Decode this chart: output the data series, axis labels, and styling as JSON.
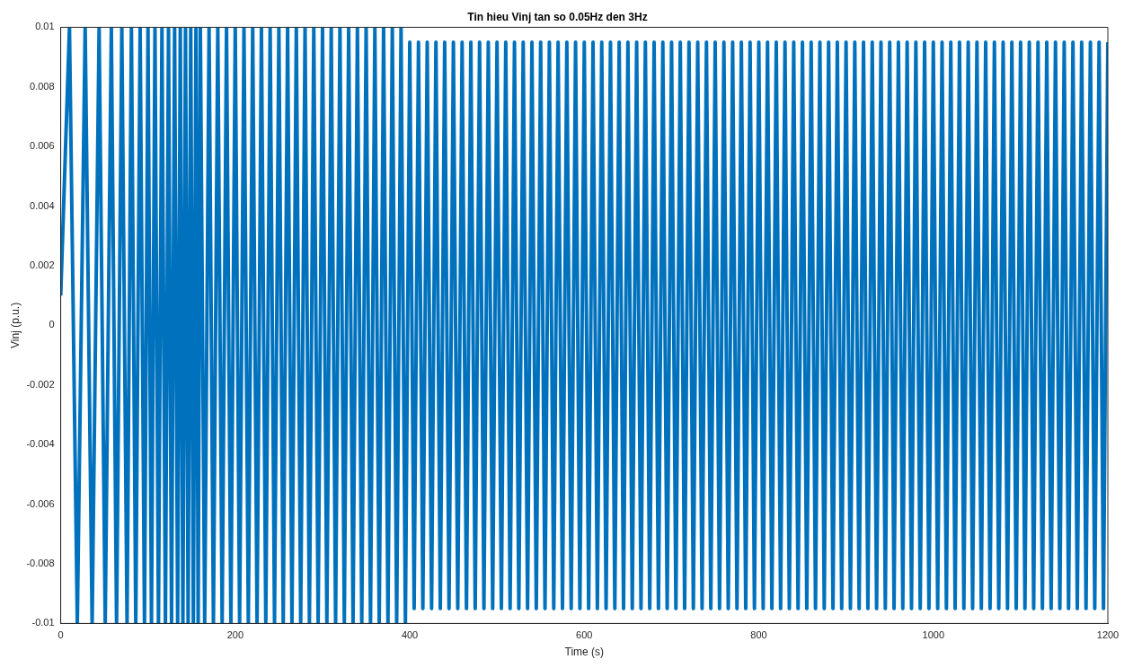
{
  "chart_data": {
    "type": "line",
    "title": "Tin hieu Vinj tan so 0.05Hz den 3Hz",
    "xlabel": "Time (s)",
    "ylabel": "Vinj (p.u.)",
    "xlim": [
      0,
      1200
    ],
    "xticks": [
      0,
      200,
      400,
      600,
      800,
      1000,
      1200
    ],
    "ylim": [
      -0.01,
      0.01
    ],
    "yticks": [
      -0.01,
      -0.008,
      -0.006,
      -0.004,
      -0.002,
      0,
      0.002,
      0.004,
      0.006,
      0.008,
      0.01
    ],
    "grid": false,
    "legend": false,
    "marker": "none",
    "line_style": "solid",
    "series": [
      {
        "color": "#0072bd",
        "x": [
          0,
          10,
          19,
          28,
          36,
          44,
          51,
          58,
          64,
          70,
          76,
          81,
          86,
          91,
          96,
          100,
          104,
          108,
          112,
          116,
          120,
          123.5,
          127,
          130.5,
          134,
          137,
          140,
          143,
          146,
          149,
          152,
          155,
          157.5,
          160,
          165,
          170,
          175,
          180,
          185,
          190,
          195,
          200,
          205,
          210,
          215,
          220,
          225,
          230,
          235,
          240,
          245,
          250,
          255,
          260,
          265,
          270,
          275,
          280,
          285,
          290,
          295,
          300,
          305,
          310,
          315,
          320,
          325,
          330,
          335,
          340,
          345,
          350,
          355,
          360,
          365,
          370,
          375,
          380,
          385,
          390,
          395,
          400,
          405,
          410,
          415,
          420,
          425,
          430,
          435,
          440,
          445,
          450,
          455,
          460,
          465,
          470,
          475,
          480,
          485,
          490,
          495,
          500,
          505,
          510,
          515,
          520,
          525,
          530,
          535,
          540,
          545,
          550,
          555,
          560,
          565,
          570,
          575,
          580,
          585,
          590,
          595,
          600,
          605,
          610,
          615,
          620,
          625,
          630,
          635,
          640,
          645,
          650,
          655,
          660,
          665,
          670,
          675,
          680,
          685,
          690,
          695,
          700,
          705,
          710,
          715,
          720,
          725,
          730,
          735,
          740,
          745,
          750,
          755,
          760,
          765,
          770,
          775,
          780,
          785,
          790,
          795,
          800,
          805,
          810,
          815,
          820,
          825,
          830,
          835,
          840,
          845,
          850,
          855,
          860,
          865,
          870,
          875,
          880,
          885,
          890,
          895,
          900,
          905,
          910,
          915,
          920,
          925,
          930,
          935,
          940,
          945,
          950,
          955,
          960,
          965,
          970,
          975,
          980,
          985,
          990,
          995,
          1000,
          1005,
          1010,
          1015,
          1020,
          1025,
          1030,
          1035,
          1040,
          1045,
          1050,
          1055,
          1060,
          1065,
          1070,
          1075,
          1080,
          1085,
          1090,
          1095,
          1100,
          1105,
          1110,
          1115,
          1120,
          1125,
          1130,
          1135,
          1140,
          1145,
          1150,
          1155,
          1160,
          1165,
          1170,
          1175,
          1180,
          1185,
          1190,
          1195,
          1200
        ],
        "values": [
          0.001,
          0.01,
          -0.01,
          0.01,
          -0.01,
          0.01,
          -0.01,
          0.01,
          -0.01,
          0.01,
          -0.01,
          0.01,
          -0.01,
          0.01,
          -0.01,
          0.01,
          -0.01,
          0.01,
          -0.01,
          0.01,
          -0.01,
          0.01,
          -0.01,
          0.01,
          -0.01,
          0.01,
          -0.01,
          0.01,
          -0.01,
          0.01,
          -0.01,
          0.01,
          -0.01,
          0.01,
          -0.01,
          0.01,
          -0.01,
          0.01,
          -0.01,
          0.01,
          -0.01,
          0.01,
          -0.01,
          0.01,
          -0.01,
          0.01,
          -0.01,
          0.01,
          -0.01,
          0.01,
          -0.01,
          0.01,
          -0.01,
          0.01,
          -0.01,
          0.01,
          -0.01,
          0.01,
          -0.01,
          0.01,
          -0.01,
          0.01,
          -0.01,
          0.01,
          -0.01,
          0.01,
          -0.01,
          0.01,
          -0.01,
          0.01,
          -0.01,
          0.01,
          -0.01,
          0.01,
          -0.01,
          0.01,
          -0.01,
          0.01,
          -0.01,
          0.01,
          -0.01,
          0.0095,
          -0.0095,
          0.0095,
          -0.0095,
          0.0095,
          -0.0095,
          0.0095,
          -0.0095,
          0.0095,
          -0.0095,
          0.0095,
          -0.0095,
          0.0095,
          -0.0095,
          0.0095,
          -0.0095,
          0.0095,
          -0.0095,
          0.0095,
          -0.0095,
          0.0095,
          -0.0095,
          0.0095,
          -0.0095,
          0.0095,
          -0.0095,
          0.0095,
          -0.0095,
          0.0095,
          -0.0095,
          0.0095,
          -0.0095,
          0.0095,
          -0.0095,
          0.0095,
          -0.0095,
          0.0095,
          -0.0095,
          0.0095,
          -0.0095,
          0.0095,
          -0.0095,
          0.0095,
          -0.0095,
          0.0095,
          -0.0095,
          0.0095,
          -0.0095,
          0.0095,
          -0.0095,
          0.0095,
          -0.0095,
          0.0095,
          -0.0095,
          0.0095,
          -0.0095,
          0.0095,
          -0.0095,
          0.0095,
          -0.0095,
          0.0095,
          -0.0095,
          0.0095,
          -0.0095,
          0.0095,
          -0.0095,
          0.0095,
          -0.0095,
          0.0095,
          -0.0095,
          0.0095,
          -0.0095,
          0.0095,
          -0.0095,
          0.0095,
          -0.0095,
          0.0095,
          -0.0095,
          0.0095,
          -0.0095,
          0.0095,
          -0.0095,
          0.0095,
          -0.0095,
          0.0095,
          -0.0095,
          0.0095,
          -0.0095,
          0.0095,
          -0.0095,
          0.0095,
          -0.0095,
          0.0095,
          -0.0095,
          0.0095,
          -0.0095,
          0.0095,
          -0.0095,
          0.0095,
          -0.0095,
          0.0095,
          -0.0095,
          0.0095,
          -0.0095,
          0.0095,
          -0.0095,
          0.0095,
          -0.0095,
          0.0095,
          -0.0095,
          0.0095,
          -0.0095,
          0.0095,
          -0.0095,
          0.0095,
          -0.0095,
          0.0095,
          -0.0095,
          0.0095,
          -0.0095,
          0.0095,
          -0.0095,
          0.0095,
          -0.0095,
          0.0095,
          -0.0095,
          0.0095,
          -0.0095,
          0.0095,
          -0.0095,
          0.0095,
          -0.0095,
          0.0095,
          -0.0095,
          0.0095,
          -0.0095,
          0.0095,
          -0.0095,
          0.0095,
          -0.0095,
          0.0095,
          -0.0095,
          0.0095,
          -0.0095,
          0.0095,
          -0.0095,
          0.0095,
          -0.0095,
          0.0095,
          -0.0095,
          0.0095,
          -0.0095,
          0.0095,
          -0.0095,
          0.0095,
          -0.0095,
          0.0095,
          -0.0095,
          0.0095,
          -0.0095,
          0.0095
        ]
      }
    ]
  }
}
